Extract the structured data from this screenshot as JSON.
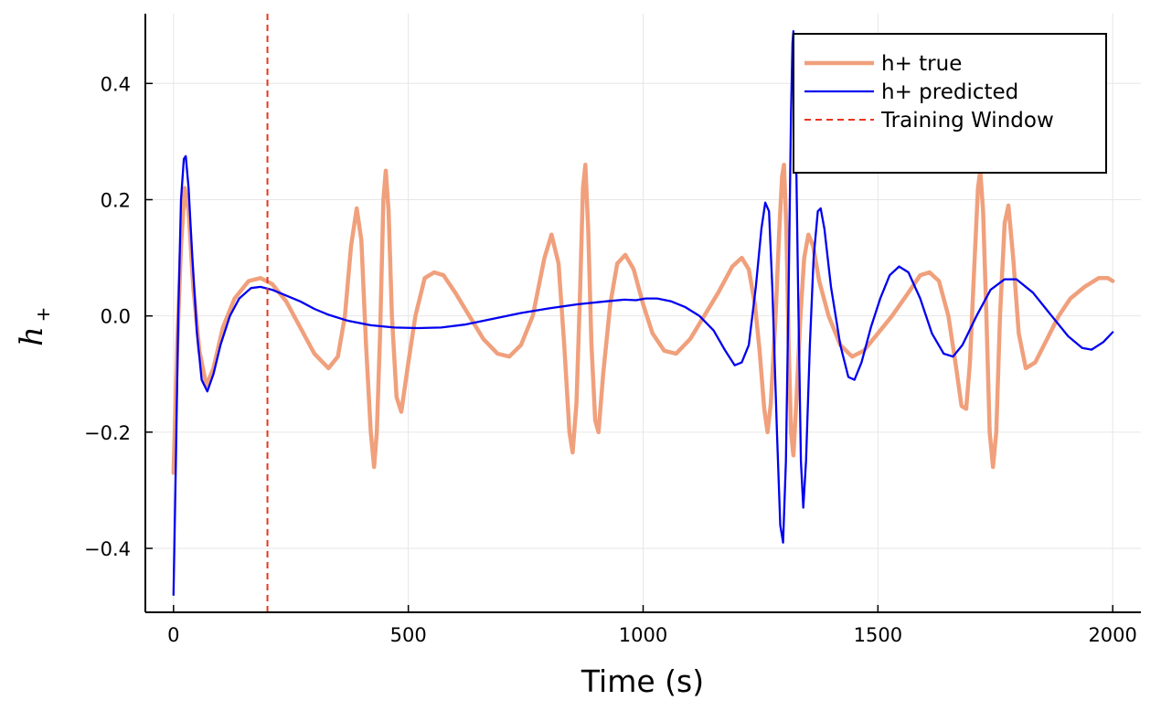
{
  "chart_data": {
    "type": "line",
    "title": "",
    "xlabel": "Time (s)",
    "ylabel_main": "h",
    "ylabel_sub": "+",
    "xlim": [
      -60,
      2060
    ],
    "ylim": [
      -0.51,
      0.52
    ],
    "xticks": [
      0,
      500,
      1000,
      1500,
      2000
    ],
    "xtick_labels": [
      "0",
      "500",
      "1000",
      "1500",
      "2000"
    ],
    "yticks": [
      -0.4,
      -0.2,
      0.0,
      0.2,
      0.4
    ],
    "ytick_labels": [
      "−0.4",
      "−0.2",
      "0.0",
      "0.2",
      "0.4"
    ],
    "grid": true,
    "legend_position": "top-right",
    "series": [
      {
        "name": "h+ true",
        "color": "#f0a07c",
        "style": "solid",
        "points": [
          [
            0,
            -0.27
          ],
          [
            8,
            -0.05
          ],
          [
            16,
            0.12
          ],
          [
            24,
            0.22
          ],
          [
            32,
            0.18
          ],
          [
            42,
            0.05
          ],
          [
            55,
            -0.06
          ],
          [
            70,
            -0.12
          ],
          [
            85,
            -0.09
          ],
          [
            105,
            -0.02
          ],
          [
            130,
            0.03
          ],
          [
            160,
            0.06
          ],
          [
            185,
            0.065
          ],
          [
            210,
            0.055
          ],
          [
            240,
            0.025
          ],
          [
            270,
            -0.02
          ],
          [
            300,
            -0.065
          ],
          [
            330,
            -0.09
          ],
          [
            350,
            -0.07
          ],
          [
            365,
            0.0
          ],
          [
            378,
            0.12
          ],
          [
            390,
            0.185
          ],
          [
            400,
            0.13
          ],
          [
            410,
            -0.05
          ],
          [
            420,
            -0.2
          ],
          [
            427,
            -0.26
          ],
          [
            433,
            -0.2
          ],
          [
            440,
            -0.03
          ],
          [
            447,
            0.2
          ],
          [
            452,
            0.25
          ],
          [
            458,
            0.18
          ],
          [
            465,
            0.0
          ],
          [
            475,
            -0.14
          ],
          [
            485,
            -0.165
          ],
          [
            500,
            -0.08
          ],
          [
            515,
            0.0
          ],
          [
            535,
            0.065
          ],
          [
            555,
            0.075
          ],
          [
            575,
            0.07
          ],
          [
            600,
            0.04
          ],
          [
            630,
            0.0
          ],
          [
            660,
            -0.04
          ],
          [
            690,
            -0.065
          ],
          [
            715,
            -0.07
          ],
          [
            740,
            -0.05
          ],
          [
            765,
            0.0
          ],
          [
            790,
            0.1
          ],
          [
            805,
            0.14
          ],
          [
            820,
            0.09
          ],
          [
            832,
            -0.05
          ],
          [
            843,
            -0.2
          ],
          [
            850,
            -0.235
          ],
          [
            858,
            -0.15
          ],
          [
            866,
            0.05
          ],
          [
            872,
            0.22
          ],
          [
            877,
            0.26
          ],
          [
            883,
            0.15
          ],
          [
            890,
            -0.05
          ],
          [
            898,
            -0.18
          ],
          [
            905,
            -0.2
          ],
          [
            915,
            -0.1
          ],
          [
            930,
            0.02
          ],
          [
            945,
            0.09
          ],
          [
            962,
            0.105
          ],
          [
            980,
            0.08
          ],
          [
            1000,
            0.02
          ],
          [
            1020,
            -0.03
          ],
          [
            1045,
            -0.06
          ],
          [
            1070,
            -0.065
          ],
          [
            1100,
            -0.04
          ],
          [
            1130,
            0.0
          ],
          [
            1160,
            0.04
          ],
          [
            1190,
            0.085
          ],
          [
            1210,
            0.1
          ],
          [
            1225,
            0.08
          ],
          [
            1238,
            0.02
          ],
          [
            1248,
            -0.06
          ],
          [
            1258,
            -0.16
          ],
          [
            1265,
            -0.2
          ],
          [
            1272,
            -0.15
          ],
          [
            1282,
            0.0
          ],
          [
            1290,
            0.15
          ],
          [
            1296,
            0.24
          ],
          [
            1300,
            0.26
          ],
          [
            1305,
            0.15
          ],
          [
            1310,
            -0.05
          ],
          [
            1315,
            -0.2
          ],
          [
            1320,
            -0.24
          ],
          [
            1326,
            -0.15
          ],
          [
            1335,
            0.0
          ],
          [
            1343,
            0.1
          ],
          [
            1352,
            0.14
          ],
          [
            1362,
            0.12
          ],
          [
            1375,
            0.06
          ],
          [
            1395,
            0.0
          ],
          [
            1420,
            -0.05
          ],
          [
            1445,
            -0.07
          ],
          [
            1470,
            -0.06
          ],
          [
            1500,
            -0.03
          ],
          [
            1530,
            0.0
          ],
          [
            1565,
            0.04
          ],
          [
            1590,
            0.07
          ],
          [
            1610,
            0.075
          ],
          [
            1630,
            0.06
          ],
          [
            1650,
            0.0
          ],
          [
            1665,
            -0.08
          ],
          [
            1678,
            -0.155
          ],
          [
            1688,
            -0.16
          ],
          [
            1696,
            -0.08
          ],
          [
            1705,
            0.08
          ],
          [
            1713,
            0.22
          ],
          [
            1718,
            0.25
          ],
          [
            1724,
            0.18
          ],
          [
            1731,
            0.0
          ],
          [
            1738,
            -0.2
          ],
          [
            1745,
            -0.26
          ],
          [
            1752,
            -0.2
          ],
          [
            1760,
            0.0
          ],
          [
            1770,
            0.16
          ],
          [
            1778,
            0.19
          ],
          [
            1788,
            0.1
          ],
          [
            1800,
            -0.03
          ],
          [
            1815,
            -0.09
          ],
          [
            1835,
            -0.08
          ],
          [
            1860,
            -0.04
          ],
          [
            1885,
            0.0
          ],
          [
            1910,
            0.03
          ],
          [
            1940,
            0.05
          ],
          [
            1970,
            0.065
          ],
          [
            1990,
            0.065
          ],
          [
            2000,
            0.06
          ]
        ]
      },
      {
        "name": "h+ predicted",
        "color": "#0000f0",
        "style": "solid",
        "points": [
          [
            0,
            -0.48
          ],
          [
            5,
            -0.25
          ],
          [
            10,
            0.0
          ],
          [
            16,
            0.2
          ],
          [
            22,
            0.27
          ],
          [
            26,
            0.275
          ],
          [
            32,
            0.22
          ],
          [
            40,
            0.1
          ],
          [
            50,
            -0.03
          ],
          [
            60,
            -0.11
          ],
          [
            72,
            -0.13
          ],
          [
            85,
            -0.1
          ],
          [
            100,
            -0.05
          ],
          [
            120,
            0.0
          ],
          [
            140,
            0.03
          ],
          [
            165,
            0.048
          ],
          [
            185,
            0.05
          ],
          [
            210,
            0.045
          ],
          [
            240,
            0.035
          ],
          [
            270,
            0.025
          ],
          [
            300,
            0.012
          ],
          [
            330,
            0.002
          ],
          [
            370,
            -0.008
          ],
          [
            420,
            -0.016
          ],
          [
            470,
            -0.02
          ],
          [
            520,
            -0.021
          ],
          [
            570,
            -0.02
          ],
          [
            620,
            -0.015
          ],
          [
            680,
            -0.005
          ],
          [
            740,
            0.005
          ],
          [
            800,
            0.013
          ],
          [
            860,
            0.02
          ],
          [
            920,
            0.025
          ],
          [
            960,
            0.028
          ],
          [
            985,
            0.027
          ],
          [
            1005,
            0.03
          ],
          [
            1030,
            0.03
          ],
          [
            1060,
            0.025
          ],
          [
            1090,
            0.015
          ],
          [
            1120,
            0.0
          ],
          [
            1150,
            -0.025
          ],
          [
            1175,
            -0.06
          ],
          [
            1195,
            -0.085
          ],
          [
            1210,
            -0.08
          ],
          [
            1225,
            -0.05
          ],
          [
            1240,
            0.05
          ],
          [
            1252,
            0.15
          ],
          [
            1260,
            0.195
          ],
          [
            1268,
            0.18
          ],
          [
            1275,
            0.05
          ],
          [
            1285,
            -0.2
          ],
          [
            1292,
            -0.36
          ],
          [
            1298,
            -0.39
          ],
          [
            1304,
            -0.25
          ],
          [
            1310,
            0.05
          ],
          [
            1315,
            0.35
          ],
          [
            1318,
            0.47
          ],
          [
            1320,
            0.49
          ],
          [
            1324,
            0.38
          ],
          [
            1330,
            0.05
          ],
          [
            1336,
            -0.25
          ],
          [
            1341,
            -0.33
          ],
          [
            1347,
            -0.25
          ],
          [
            1355,
            -0.05
          ],
          [
            1363,
            0.1
          ],
          [
            1372,
            0.18
          ],
          [
            1378,
            0.185
          ],
          [
            1386,
            0.15
          ],
          [
            1400,
            0.05
          ],
          [
            1420,
            -0.05
          ],
          [
            1437,
            -0.105
          ],
          [
            1450,
            -0.11
          ],
          [
            1465,
            -0.08
          ],
          [
            1485,
            -0.02
          ],
          [
            1505,
            0.03
          ],
          [
            1525,
            0.07
          ],
          [
            1545,
            0.085
          ],
          [
            1565,
            0.075
          ],
          [
            1590,
            0.03
          ],
          [
            1615,
            -0.03
          ],
          [
            1640,
            -0.065
          ],
          [
            1660,
            -0.07
          ],
          [
            1680,
            -0.05
          ],
          [
            1710,
            0.0
          ],
          [
            1740,
            0.045
          ],
          [
            1770,
            0.063
          ],
          [
            1795,
            0.063
          ],
          [
            1830,
            0.04
          ],
          [
            1870,
            0.0
          ],
          [
            1905,
            -0.035
          ],
          [
            1935,
            -0.055
          ],
          [
            1955,
            -0.058
          ],
          [
            1980,
            -0.045
          ],
          [
            2000,
            -0.028
          ]
        ]
      },
      {
        "name": "Training Window",
        "color": "#e8351f",
        "style": "dashed",
        "x_value": 200
      }
    ]
  }
}
